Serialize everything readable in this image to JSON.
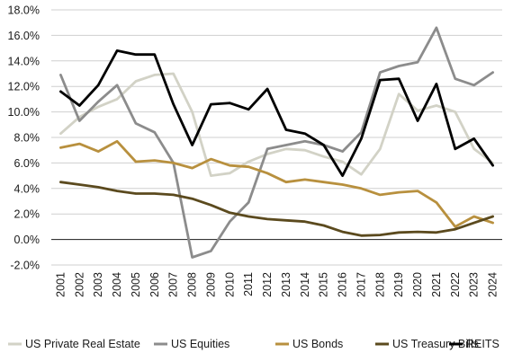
{
  "chart_data": {
    "type": "line",
    "x": [
      "2001",
      "2002",
      "2003",
      "2004",
      "2005",
      "2006",
      "2007",
      "2008",
      "2009",
      "2010",
      "2011",
      "2012",
      "2013",
      "2014",
      "2015",
      "2016",
      "2017",
      "2018",
      "2019",
      "2020",
      "2021",
      "2022",
      "2023",
      "2024"
    ],
    "y_ticks": [
      "-2.0%",
      "0.0%",
      "2.0%",
      "4.0%",
      "6.0%",
      "8.0%",
      "10.0%",
      "12.0%",
      "14.0%",
      "16.0%",
      "18.0%"
    ],
    "ylim": [
      -2,
      18
    ],
    "grid": true,
    "legend_position": "bottom",
    "series": [
      {
        "name": "US Private Real Estate",
        "color": "#d2d2c6",
        "values": [
          8.3,
          9.6,
          10.4,
          11.0,
          12.4,
          12.9,
          13.0,
          10.0,
          5.0,
          5.2,
          6.1,
          6.7,
          7.1,
          7.0,
          6.5,
          6.1,
          5.1,
          7.1,
          11.4,
          10.1,
          10.5,
          10.0,
          7.1,
          6.0
        ]
      },
      {
        "name": "US Equities",
        "color": "#8c8c8c",
        "values": [
          12.9,
          9.3,
          10.8,
          12.1,
          9.1,
          8.4,
          6.0,
          -1.4,
          -0.9,
          1.4,
          2.9,
          7.1,
          7.4,
          7.7,
          7.4,
          6.9,
          8.4,
          13.1,
          13.6,
          13.9,
          16.6,
          12.6,
          12.1,
          13.1
        ]
      },
      {
        "name": "US Bonds",
        "color": "#b8903e",
        "values": [
          7.2,
          7.5,
          6.9,
          7.7,
          6.1,
          6.2,
          6.0,
          5.6,
          6.3,
          5.8,
          5.7,
          5.2,
          4.5,
          4.7,
          4.5,
          4.3,
          4.0,
          3.5,
          3.7,
          3.8,
          2.9,
          1.0,
          1.8,
          1.3
        ]
      },
      {
        "name": "US Treasury Bills",
        "color": "#5b4a1e",
        "values": [
          4.5,
          4.3,
          4.1,
          3.8,
          3.6,
          3.6,
          3.5,
          3.2,
          2.7,
          2.1,
          1.8,
          1.6,
          1.5,
          1.4,
          1.1,
          0.6,
          0.3,
          0.35,
          0.55,
          0.6,
          0.55,
          0.8,
          1.3,
          1.8
        ]
      },
      {
        "name": "REITS",
        "color": "#000000",
        "values": [
          11.6,
          10.5,
          12.1,
          14.8,
          14.5,
          14.5,
          10.6,
          7.4,
          10.6,
          10.7,
          10.2,
          11.8,
          8.6,
          8.3,
          7.4,
          5.0,
          7.9,
          12.5,
          12.6,
          9.3,
          12.2,
          7.1,
          7.9,
          5.8
        ]
      }
    ]
  }
}
